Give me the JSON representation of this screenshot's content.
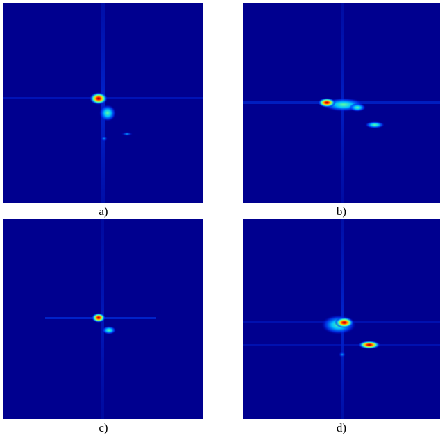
{
  "figure": {
    "panels": [
      {
        "label": "a)"
      },
      {
        "label": "b)"
      },
      {
        "label": "c)"
      },
      {
        "label": "d)"
      }
    ]
  }
}
